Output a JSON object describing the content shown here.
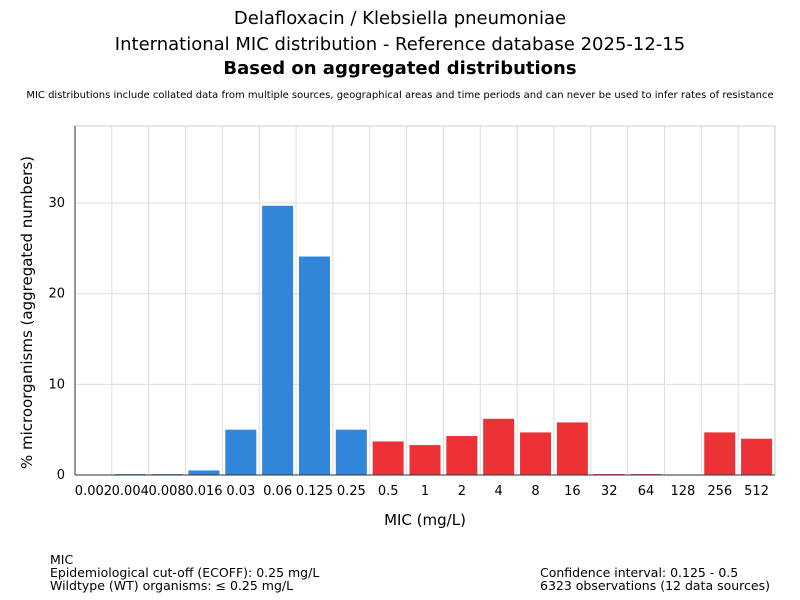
{
  "header": {
    "title_line1": "Delafloxacin / Klebsiella pneumoniae",
    "title_line2": "International MIC distribution - Reference database 2025-12-15",
    "title_line3": "Based on aggregated distributions",
    "note": "MIC distributions include collated data from multiple sources, geographical areas and time periods and can never be used to infer rates of resistance"
  },
  "chart_data": {
    "type": "bar",
    "title": "Delafloxacin / Klebsiella pneumoniae",
    "xlabel": "MIC (mg/L)",
    "ylabel": "% microorganisms (aggregated numbers)",
    "ylim": [
      0,
      38.5
    ],
    "yticks": [
      0,
      10,
      20,
      30
    ],
    "grid": true,
    "categories": [
      "0.002",
      "0.004",
      "0.008",
      "0.016",
      "0.03",
      "0.06",
      "0.125",
      "0.25",
      "0.5",
      "1",
      "2",
      "4",
      "8",
      "16",
      "32",
      "64",
      "128",
      "256",
      "512"
    ],
    "values": [
      0,
      0.1,
      0.1,
      0.5,
      5.0,
      29.7,
      24.1,
      5.0,
      3.7,
      3.3,
      4.3,
      6.2,
      4.7,
      5.8,
      0.1,
      0.1,
      0,
      4.7,
      4.0
    ],
    "colors": [
      "#2f86db",
      "#2f86db",
      "#2f86db",
      "#2f86db",
      "#2f86db",
      "#2f86db",
      "#2f86db",
      "#2f86db",
      "#ec3237",
      "#ec3237",
      "#ec3237",
      "#ec3237",
      "#ec3237",
      "#ec3237",
      "#ec3237",
      "#ec3237",
      "#ec3237",
      "#ec3237",
      "#ec3237"
    ]
  },
  "footer": {
    "left_line1": "MIC",
    "left_line2": "Epidemiological cut-off (ECOFF): 0.25 mg/L",
    "left_line3": "Wildtype (WT) organisms: ≤ 0.25 mg/L",
    "right_line1": "Confidence interval: 0.125 - 0.5",
    "right_line2": "6323 observations (12 data sources)"
  }
}
